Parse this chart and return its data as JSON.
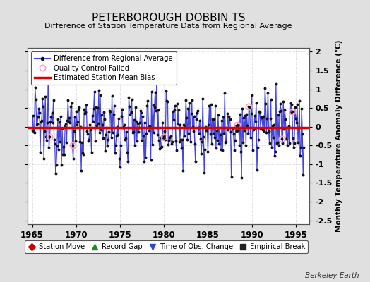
{
  "title": "PETERBOROUGH DOBBIN TS",
  "subtitle": "Difference of Station Temperature Data from Regional Average",
  "ylabel": "Monthly Temperature Anomaly Difference (°C)",
  "xlabel_ticks": [
    1965,
    1970,
    1975,
    1980,
    1985,
    1990,
    1995
  ],
  "yticks": [
    -2.5,
    -2,
    -1.5,
    -1,
    -0.5,
    0,
    0.5,
    1,
    1.5,
    2
  ],
  "xlim": [
    1964.5,
    1996.5
  ],
  "ylim": [
    -2.6,
    2.1
  ],
  "bias_value": -0.02,
  "bg_color": "#e0e0e0",
  "plot_bg_color": "#ffffff",
  "line_color": "#4444dd",
  "bias_color": "#dd0000",
  "qc_color": "#ff99cc",
  "watermark": "Berkeley Earth",
  "seed": 12345,
  "n_months": 372,
  "start_year": 1965.0,
  "amplitude": 0.48,
  "seasonal_amp": 0.12
}
